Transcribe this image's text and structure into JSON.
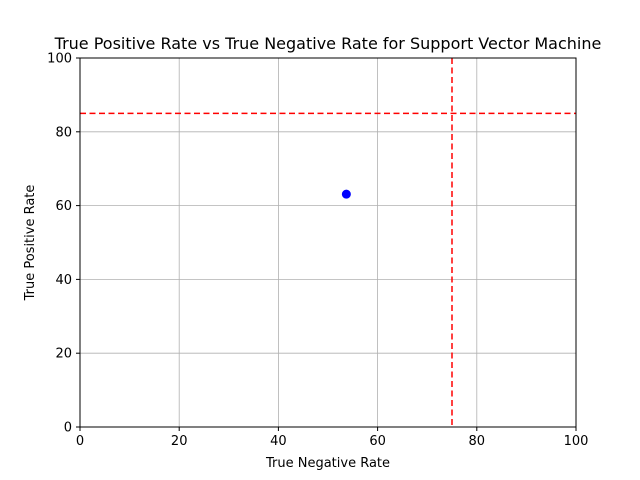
{
  "chart_data": {
    "type": "scatter",
    "title": "True Positive Rate vs True Negative Rate for Support Vector Machine",
    "xlabel": "True Negative Rate",
    "ylabel": "True Positive Rate",
    "xlim": [
      0,
      100
    ],
    "ylim": [
      0,
      100
    ],
    "xticks": [
      0,
      20,
      40,
      60,
      80,
      100
    ],
    "yticks": [
      0,
      20,
      40,
      60,
      80,
      100
    ],
    "grid": true,
    "points": [
      {
        "x": 53.7,
        "y": 63.1
      }
    ],
    "point_color": "#0000ff",
    "reference_lines": [
      {
        "orientation": "vertical",
        "x": 75,
        "color": "#ff0000",
        "style": "dashed"
      },
      {
        "orientation": "horizontal",
        "y": 85,
        "color": "#ff0000",
        "style": "dashed"
      }
    ]
  }
}
